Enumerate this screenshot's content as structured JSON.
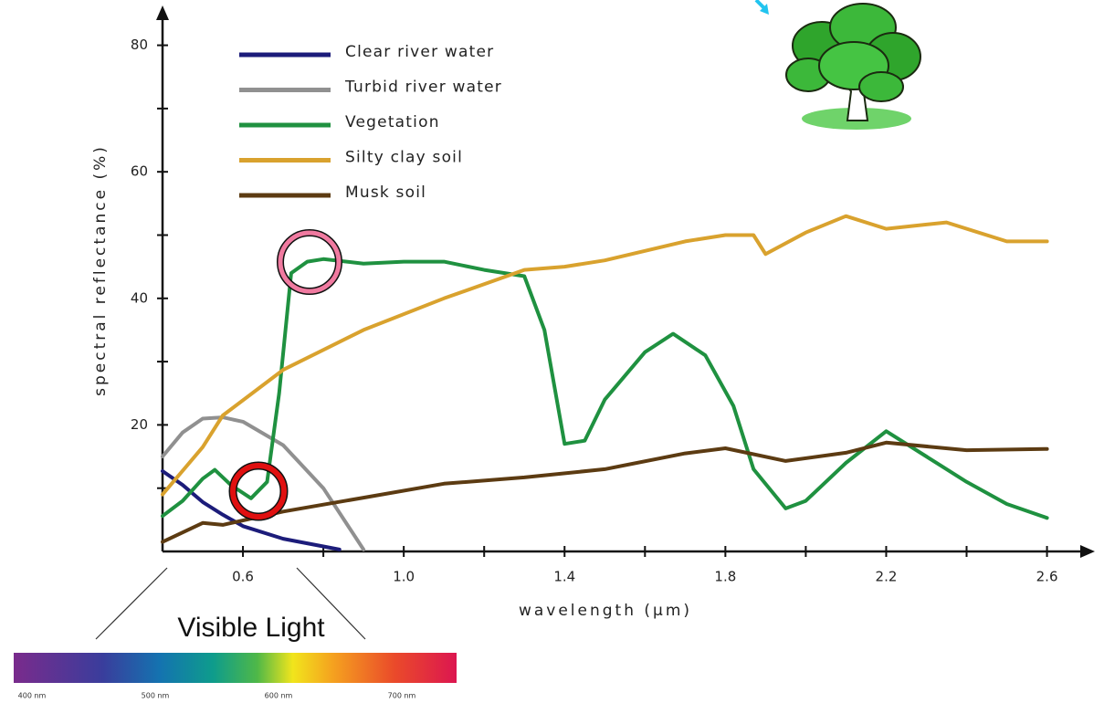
{
  "chart_data": {
    "type": "line",
    "xlabel": "wavelength (µm)",
    "ylabel": "spectral reflectance (%)",
    "xlim": [
      0.4,
      2.71
    ],
    "ylim": [
      0,
      86
    ],
    "xticks": [
      0.6,
      {
        "value": 1,
        "label": "1.0"
      },
      1.4,
      1.8,
      2.2,
      2.6
    ],
    "yticks": [
      20,
      40,
      60,
      80
    ],
    "legend": "upper left",
    "series": [
      {
        "name": "Clear river water",
        "color": "#1c1c7a",
        "x": [
          0.4,
          0.45,
          0.5,
          0.55,
          0.6,
          0.7,
          0.8,
          0.84
        ],
        "values": [
          12.7,
          10.5,
          7.8,
          5.8,
          4,
          2,
          0.8,
          0.3
        ]
      },
      {
        "name": "Turbid river water",
        "color": "#909090",
        "x": [
          0.4,
          0.45,
          0.5,
          0.55,
          0.6,
          0.7,
          0.8,
          0.9
        ],
        "values": [
          15,
          18.8,
          21,
          21.2,
          20.5,
          16.8,
          10,
          0.3
        ]
      },
      {
        "name": "Vegetation",
        "color": "#1f9140",
        "x": [
          0.4,
          0.45,
          0.5,
          0.53,
          0.57,
          0.62,
          0.66,
          0.69,
          0.72,
          0.76,
          0.8,
          0.9,
          1.0,
          1.1,
          1.2,
          1.3,
          1.35,
          1.4,
          1.45,
          1.5,
          1.6,
          1.67,
          1.75,
          1.82,
          1.87,
          1.95,
          2.0,
          2.1,
          2.2,
          2.3,
          2.4,
          2.5,
          2.6
        ],
        "values": [
          5.6,
          8,
          11.5,
          12.9,
          10.5,
          8.4,
          11,
          25,
          44,
          45.8,
          46.2,
          45.5,
          45.8,
          45.8,
          44.5,
          43.5,
          35,
          17,
          17.5,
          24,
          31.5,
          34.4,
          31,
          23,
          13,
          6.8,
          8,
          14,
          19,
          15,
          11,
          7.5,
          5.3
        ]
      },
      {
        "name": "Silty clay soil",
        "color": "#d9a22e",
        "x": [
          0.4,
          0.5,
          0.55,
          0.7,
          0.9,
          1.1,
          1.3,
          1.4,
          1.5,
          1.7,
          1.8,
          1.87,
          1.9,
          2.0,
          2.1,
          2.2,
          2.35,
          2.5,
          2.6
        ],
        "values": [
          9,
          16.5,
          21.5,
          28.7,
          35,
          40,
          44.5,
          45,
          46,
          49,
          50,
          50,
          47,
          50.4,
          53,
          51,
          52,
          49,
          49
        ]
      },
      {
        "name": "Musk soil",
        "color": "#5c3b12",
        "x": [
          0.4,
          0.5,
          0.55,
          0.7,
          0.9,
          1.1,
          1.3,
          1.5,
          1.7,
          1.8,
          1.95,
          2.1,
          2.2,
          2.4,
          2.6
        ],
        "values": [
          1.5,
          4.5,
          4.2,
          6.3,
          8.5,
          10.7,
          11.7,
          13,
          15.5,
          16.3,
          14.3,
          15.6,
          17.2,
          16,
          16.2
        ]
      }
    ]
  },
  "visible_spectrum": {
    "label": "Visible Light",
    "ticks": [
      "400 nm",
      "500 nm",
      "600 nm",
      "700 nm"
    ]
  }
}
